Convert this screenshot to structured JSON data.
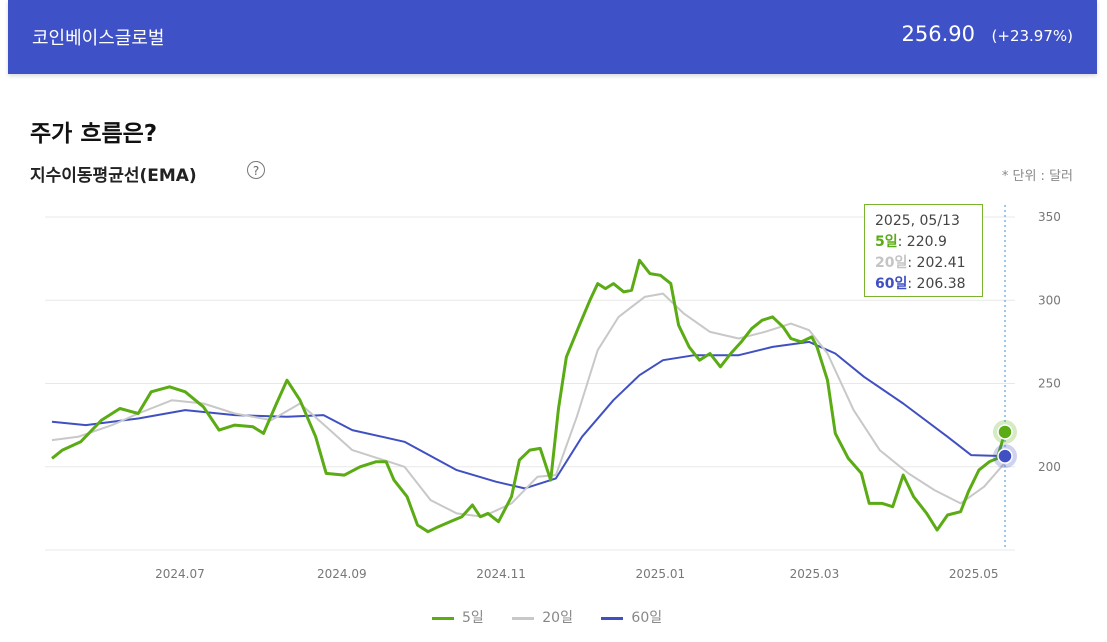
{
  "header": {
    "name": "코인베이스글로벌",
    "price": "256.90",
    "change": "(+23.97%)"
  },
  "section_title": "주가 흐름은?",
  "subtitle": "지수이동평균선(EMA)",
  "help_icon": "question-circle-icon",
  "unit": "* 단위 : 달러",
  "tooltip": {
    "date": "2025, 05/13",
    "rows": [
      {
        "label": "5일",
        "value": ": 220.9"
      },
      {
        "label": "20일",
        "value": ": 202.41"
      },
      {
        "label": "60일",
        "value": ": 206.38"
      }
    ]
  },
  "legend": [
    "5일",
    "20일",
    "60일"
  ],
  "colors": {
    "header": "#3f51c6",
    "ema5": "#5aab14",
    "ema20": "#c8c8c8",
    "ema60": "#4050c2"
  },
  "chart_data": {
    "type": "line",
    "x_range": [
      "2024-05-13",
      "2025-05-13"
    ],
    "x_ticks": [
      "2024.07",
      "2024.09",
      "2024.11",
      "2025.01",
      "2025.03",
      "2025.05"
    ],
    "y_ticks": [
      350,
      300,
      250,
      200
    ],
    "ylim": [
      150,
      350
    ],
    "grid": true,
    "legend_position": "bottom",
    "series": [
      {
        "name": "5일",
        "color": "#5aab14",
        "points": [
          [
            "2024-05-13",
            205
          ],
          [
            "2024-05-17",
            210
          ],
          [
            "2024-05-24",
            215
          ],
          [
            "2024-06-01",
            228
          ],
          [
            "2024-06-08",
            235
          ],
          [
            "2024-06-15",
            232
          ],
          [
            "2024-06-20",
            245
          ],
          [
            "2024-06-27",
            248
          ],
          [
            "2024-07-03",
            245
          ],
          [
            "2024-07-10",
            236
          ],
          [
            "2024-07-16",
            222
          ],
          [
            "2024-07-22",
            225
          ],
          [
            "2024-07-29",
            224
          ],
          [
            "2024-08-02",
            220
          ],
          [
            "2024-08-07",
            238
          ],
          [
            "2024-08-11",
            252
          ],
          [
            "2024-08-16",
            240
          ],
          [
            "2024-08-22",
            218
          ],
          [
            "2024-08-26",
            196
          ],
          [
            "2024-09-02",
            195
          ],
          [
            "2024-09-08",
            200
          ],
          [
            "2024-09-14",
            203
          ],
          [
            "2024-09-18",
            203
          ],
          [
            "2024-09-21",
            192
          ],
          [
            "2024-09-26",
            182
          ],
          [
            "2024-09-30",
            165
          ],
          [
            "2024-10-04",
            161
          ],
          [
            "2024-10-08",
            164
          ],
          [
            "2024-10-14",
            168
          ],
          [
            "2024-10-17",
            170
          ],
          [
            "2024-10-21",
            177
          ],
          [
            "2024-10-24",
            170
          ],
          [
            "2024-10-27",
            172
          ],
          [
            "2024-10-31",
            167
          ],
          [
            "2024-11-05",
            182
          ],
          [
            "2024-11-08",
            204
          ],
          [
            "2024-11-12",
            210
          ],
          [
            "2024-11-16",
            211
          ],
          [
            "2024-11-20",
            192
          ],
          [
            "2024-11-23",
            235
          ],
          [
            "2024-11-26",
            266
          ],
          [
            "2024-12-01",
            285
          ],
          [
            "2024-12-05",
            300
          ],
          [
            "2024-12-08",
            310
          ],
          [
            "2024-12-11",
            307
          ],
          [
            "2024-12-14",
            310
          ],
          [
            "2024-12-18",
            305
          ],
          [
            "2024-12-21",
            306
          ],
          [
            "2024-12-24",
            324
          ],
          [
            "2024-12-28",
            316
          ],
          [
            "2025-01-01",
            315
          ],
          [
            "2025-01-05",
            310
          ],
          [
            "2025-01-08",
            285
          ],
          [
            "2025-01-12",
            272
          ],
          [
            "2025-01-16",
            264
          ],
          [
            "2025-01-20",
            268
          ],
          [
            "2025-01-24",
            260
          ],
          [
            "2025-01-28",
            268
          ],
          [
            "2025-02-01",
            275
          ],
          [
            "2025-02-05",
            283
          ],
          [
            "2025-02-09",
            288
          ],
          [
            "2025-02-13",
            290
          ],
          [
            "2025-02-17",
            284
          ],
          [
            "2025-02-20",
            277
          ],
          [
            "2025-02-24",
            275
          ],
          [
            "2025-02-28",
            278
          ],
          [
            "2025-03-02",
            272
          ],
          [
            "2025-03-06",
            252
          ],
          [
            "2025-03-09",
            220
          ],
          [
            "2025-03-14",
            205
          ],
          [
            "2025-03-19",
            196
          ],
          [
            "2025-03-22",
            178
          ],
          [
            "2025-03-27",
            178
          ],
          [
            "2025-03-31",
            176
          ],
          [
            "2025-04-04",
            195
          ],
          [
            "2025-04-08",
            182
          ],
          [
            "2025-04-13",
            172
          ],
          [
            "2025-04-17",
            162
          ],
          [
            "2025-04-21",
            171
          ],
          [
            "2025-04-26",
            173
          ],
          [
            "2025-04-29",
            185
          ],
          [
            "2025-05-03",
            198
          ],
          [
            "2025-05-07",
            203
          ],
          [
            "2025-05-10",
            205
          ],
          [
            "2025-05-13",
            220.9
          ]
        ]
      },
      {
        "name": "20일",
        "color": "#c8c8c8",
        "points": [
          [
            "2024-05-13",
            216
          ],
          [
            "2024-05-23",
            218
          ],
          [
            "2024-06-05",
            225
          ],
          [
            "2024-06-15",
            232
          ],
          [
            "2024-06-28",
            240
          ],
          [
            "2024-07-10",
            238
          ],
          [
            "2024-07-22",
            232
          ],
          [
            "2024-08-05",
            228
          ],
          [
            "2024-08-16",
            238
          ],
          [
            "2024-08-26",
            224
          ],
          [
            "2024-09-05",
            210
          ],
          [
            "2024-09-15",
            205
          ],
          [
            "2024-09-25",
            200
          ],
          [
            "2024-10-05",
            180
          ],
          [
            "2024-10-15",
            172
          ],
          [
            "2024-10-25",
            170
          ],
          [
            "2024-11-05",
            178
          ],
          [
            "2024-11-15",
            194
          ],
          [
            "2024-11-22",
            195
          ],
          [
            "2024-11-30",
            230
          ],
          [
            "2024-12-08",
            270
          ],
          [
            "2024-12-16",
            290
          ],
          [
            "2024-12-26",
            302
          ],
          [
            "2025-01-02",
            304
          ],
          [
            "2025-01-10",
            292
          ],
          [
            "2025-01-20",
            281
          ],
          [
            "2025-01-31",
            277
          ],
          [
            "2025-02-10",
            281
          ],
          [
            "2025-02-20",
            286
          ],
          [
            "2025-02-27",
            282
          ],
          [
            "2025-03-06",
            268
          ],
          [
            "2025-03-16",
            234
          ],
          [
            "2025-03-26",
            210
          ],
          [
            "2025-04-06",
            196
          ],
          [
            "2025-04-16",
            186
          ],
          [
            "2025-04-26",
            178
          ],
          [
            "2025-05-05",
            188
          ],
          [
            "2025-05-13",
            202.41
          ]
        ]
      },
      {
        "name": "60일",
        "color": "#4050c2",
        "points": [
          [
            "2024-05-13",
            227
          ],
          [
            "2024-05-26",
            225
          ],
          [
            "2024-06-15",
            229
          ],
          [
            "2024-07-03",
            234
          ],
          [
            "2024-07-22",
            231
          ],
          [
            "2024-08-11",
            230
          ],
          [
            "2024-08-25",
            231
          ],
          [
            "2024-09-05",
            222
          ],
          [
            "2024-09-25",
            215
          ],
          [
            "2024-10-15",
            198
          ],
          [
            "2024-10-30",
            191
          ],
          [
            "2024-11-10",
            187
          ],
          [
            "2024-11-22",
            193
          ],
          [
            "2024-12-02",
            218
          ],
          [
            "2024-12-14",
            240
          ],
          [
            "2024-12-24",
            255
          ],
          [
            "2025-01-02",
            264
          ],
          [
            "2025-01-14",
            267
          ],
          [
            "2025-01-31",
            267
          ],
          [
            "2025-02-13",
            272
          ],
          [
            "2025-02-27",
            275
          ],
          [
            "2025-03-09",
            268
          ],
          [
            "2025-03-20",
            254
          ],
          [
            "2025-04-04",
            238
          ],
          [
            "2025-04-21",
            218
          ],
          [
            "2025-04-30",
            207
          ],
          [
            "2025-05-13",
            206.38
          ]
        ]
      }
    ]
  }
}
